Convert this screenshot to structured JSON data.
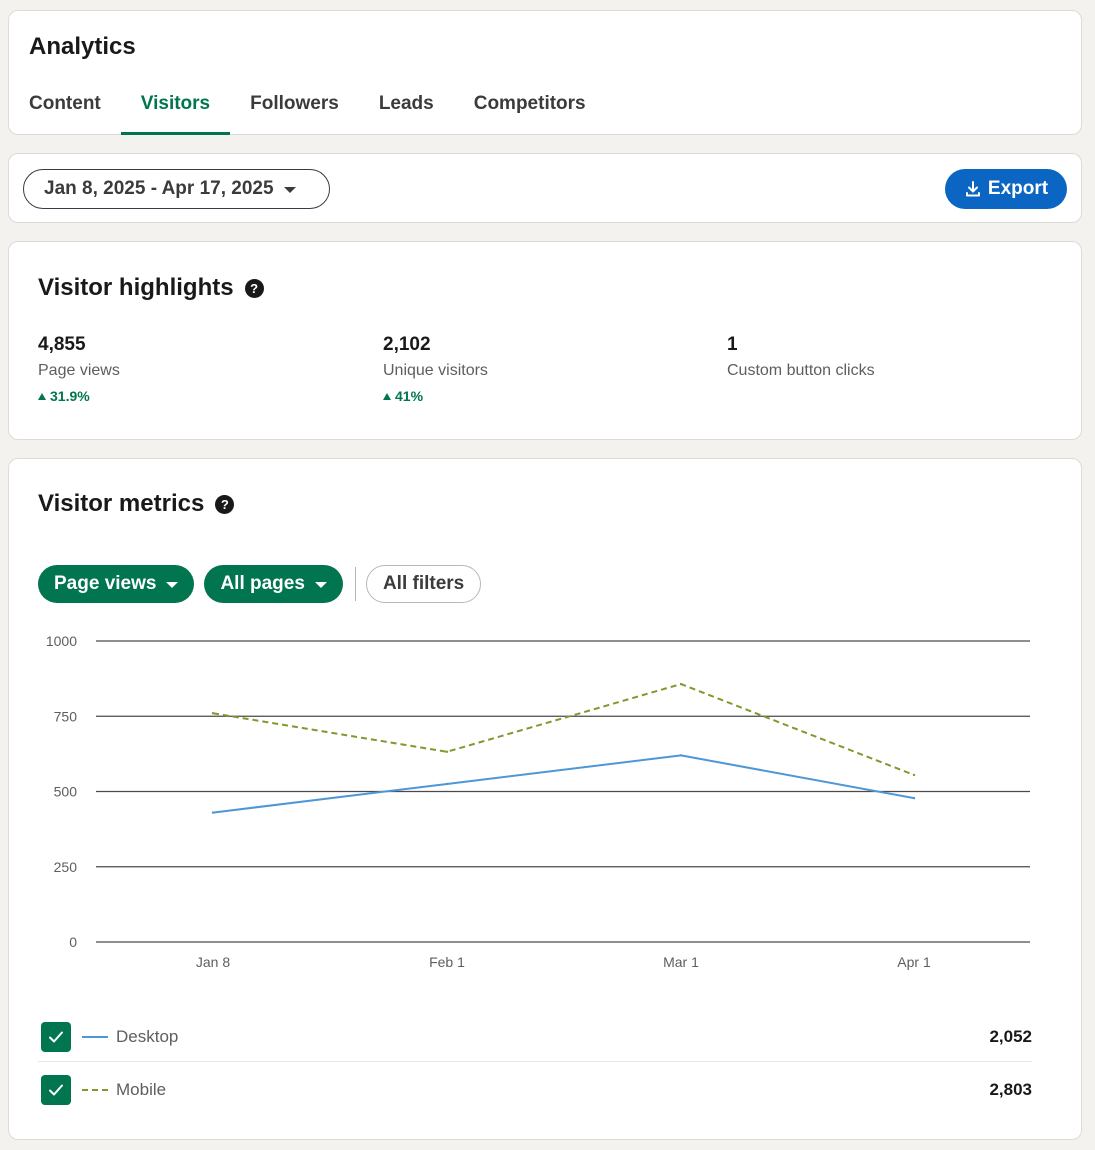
{
  "header": {
    "title": "Analytics",
    "tabs": [
      {
        "label": "Content",
        "active": false
      },
      {
        "label": "Visitors",
        "active": true
      },
      {
        "label": "Followers",
        "active": false
      },
      {
        "label": "Leads",
        "active": false
      },
      {
        "label": "Competitors",
        "active": false
      }
    ]
  },
  "controls": {
    "date_range": "Jan 8, 2025 - Apr 17, 2025",
    "export_label": "Export"
  },
  "highlights": {
    "title": "Visitor highlights",
    "help_glyph": "?",
    "stats": [
      {
        "value": "4,855",
        "label": "Page views",
        "change": "31.9%"
      },
      {
        "value": "2,102",
        "label": "Unique visitors",
        "change": "41%"
      },
      {
        "value": "1",
        "label": "Custom button clicks",
        "change": ""
      }
    ]
  },
  "metrics": {
    "title": "Visitor metrics",
    "help_glyph": "?",
    "filters": {
      "metric": "Page views",
      "pages": "All pages",
      "all_filters": "All filters"
    },
    "legend": [
      {
        "name": "Desktop",
        "total": "2,052",
        "checked": true
      },
      {
        "name": "Mobile",
        "total": "2,803",
        "checked": true
      }
    ]
  },
  "colors": {
    "accent_green": "#01754f",
    "export_blue": "#0a66c2",
    "desktop_line": "#4e97d6",
    "mobile_line": "#7e9a2f"
  },
  "chart_data": {
    "type": "line",
    "categories": [
      "Jan 8",
      "Feb 1",
      "Mar 1",
      "Apr 1"
    ],
    "series": [
      {
        "name": "Desktop",
        "values": [
          430,
          525,
          620,
          478
        ],
        "style": "solid",
        "color": "#4e97d6"
      },
      {
        "name": "Mobile",
        "values": [
          760,
          632,
          857,
          555
        ],
        "style": "dashed",
        "color": "#7e9a2f"
      }
    ],
    "yticks": [
      0,
      250,
      500,
      750,
      1000
    ],
    "ylim": [
      0,
      1000
    ],
    "grid": true,
    "legend_position": "bottom"
  }
}
